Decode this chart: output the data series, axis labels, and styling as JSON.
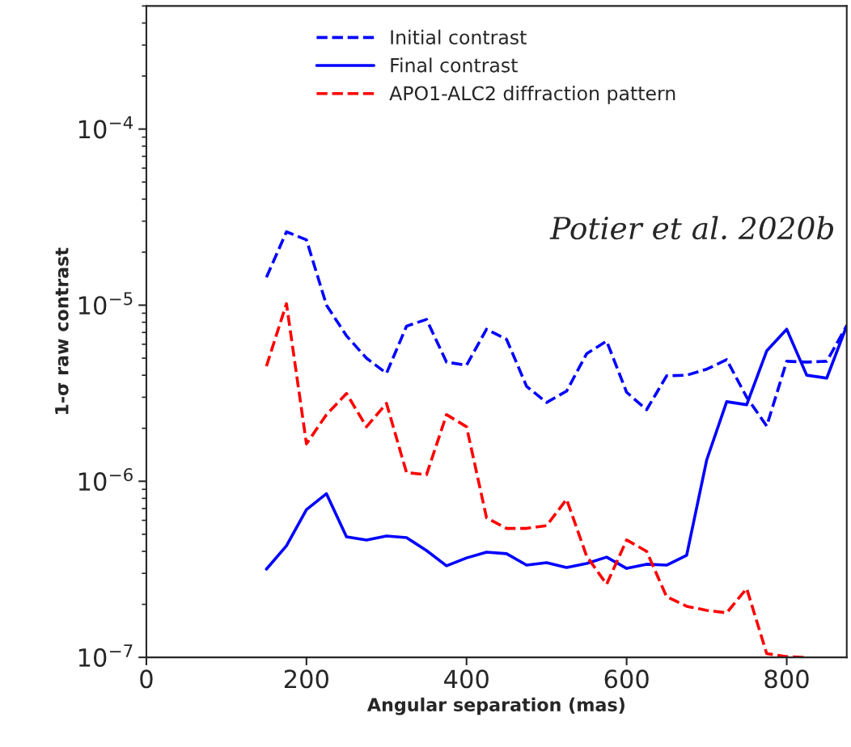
{
  "chart_data": {
    "type": "line",
    "xlabel": "Angular separation (mas)",
    "ylabel": "1-σ raw contrast",
    "log": "y",
    "xlim": [
      0,
      875
    ],
    "ylim": [
      1e-07,
      0.0005
    ],
    "xticks": [
      0,
      200,
      400,
      600,
      800
    ],
    "yticks": [
      {
        "value": 1e-07,
        "label": "10$^{−7}$"
      },
      {
        "value": 1e-06,
        "label": "10$^{−6}$"
      },
      {
        "value": 1e-05,
        "label": "10$^{−5}$"
      },
      {
        "value": 0.0001,
        "label": "10$^{−4}$"
      }
    ],
    "grid": false,
    "legend": "top",
    "marker": "none",
    "annotations": [
      "Potier et al. 2020b"
    ],
    "series": [
      {
        "name": "Initial contrast",
        "color": "#0000ff",
        "line_style": "dashed",
        "x": [
          150,
          175,
          200,
          225,
          250,
          275,
          300,
          325,
          350,
          375,
          400,
          425,
          450,
          475,
          500,
          525,
          550,
          575,
          600,
          625,
          650,
          675,
          700,
          725,
          750,
          775,
          800,
          825,
          850,
          875
        ],
        "values": [
          1.44e-05,
          2.61e-05,
          2.35e-05,
          1e-05,
          6.7e-06,
          5e-06,
          4.1e-06,
          7.6e-06,
          8.3e-06,
          4.75e-06,
          4.56e-06,
          7.3e-06,
          6.4e-06,
          3.46e-06,
          2.8e-06,
          3.25e-06,
          5.3e-06,
          6.25e-06,
          3.2e-06,
          2.55e-06,
          3.97e-06,
          4e-06,
          4.33e-06,
          4.9e-06,
          3e-06,
          2.06e-06,
          4.8e-06,
          4.75e-06,
          4.8e-06,
          7.65e-06
        ]
      },
      {
        "name": "Final contrast",
        "color": "#0000ff",
        "line_style": "solid",
        "x": [
          150,
          175,
          200,
          225,
          250,
          275,
          300,
          325,
          350,
          375,
          400,
          425,
          450,
          475,
          500,
          525,
          550,
          575,
          600,
          625,
          650,
          675,
          700,
          725,
          750,
          775,
          800,
          825,
          850,
          875
        ],
        "values": [
          3.17e-07,
          4.3e-07,
          6.9e-07,
          8.5e-07,
          4.84e-07,
          4.64e-07,
          4.89e-07,
          4.79e-07,
          4.04e-07,
          3.31e-07,
          3.67e-07,
          3.96e-07,
          3.88e-07,
          3.34e-07,
          3.45e-07,
          3.24e-07,
          3.41e-07,
          3.71e-07,
          3.2e-07,
          3.38e-07,
          3.34e-07,
          3.8e-07,
          1.32e-06,
          2.83e-06,
          2.72e-06,
          5.5e-06,
          7.3e-06,
          4e-06,
          3.85e-06,
          7.65e-06
        ]
      },
      {
        "name": "APO1-ALC2 diffraction pattern",
        "color": "#ff0000",
        "line_style": "dashed",
        "x": [
          150,
          175,
          200,
          225,
          250,
          275,
          300,
          325,
          350,
          375,
          400,
          425,
          450,
          475,
          500,
          525,
          550,
          575,
          600,
          625,
          650,
          675,
          700,
          725,
          750,
          775,
          800,
          825
        ],
        "values": [
          4.5e-06,
          1.02e-05,
          1.63e-06,
          2.39e-06,
          3.15e-06,
          2.04e-06,
          2.77e-06,
          1.12e-06,
          1.09e-06,
          2.39e-06,
          2.04e-06,
          6.2e-07,
          5.4e-07,
          5.4e-07,
          5.6e-07,
          7.9e-07,
          3.76e-07,
          2.6e-07,
          4.64e-07,
          4e-07,
          2.21e-07,
          1.95e-07,
          1.85e-07,
          1.79e-07,
          2.46e-07,
          1.05e-07,
          1.01e-07,
          1e-07
        ]
      }
    ]
  }
}
